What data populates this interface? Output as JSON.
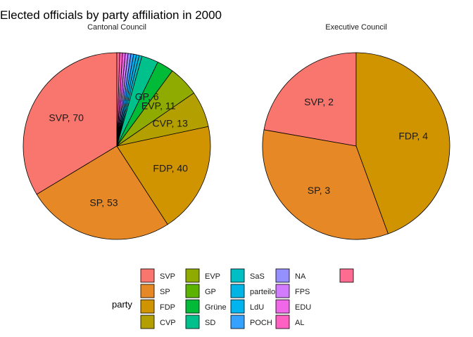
{
  "chart_data": {
    "type": "pie",
    "title": "Elected officials by party affiliation in 2000",
    "legend": {
      "title": "party",
      "position": "bottom"
    },
    "parties": [
      {
        "name": "SVP",
        "color": "#F8766D"
      },
      {
        "name": "SP",
        "color": "#E58825"
      },
      {
        "name": "FDP",
        "color": "#D09400"
      },
      {
        "name": "CVP",
        "color": "#B3A000"
      },
      {
        "name": "EVP",
        "color": "#8FAA00"
      },
      {
        "name": "GP",
        "color": "#5BB300"
      },
      {
        "name": "Grüne",
        "color": "#00BA38"
      },
      {
        "name": "SD",
        "color": "#00C08B"
      },
      {
        "name": "SaS",
        "color": "#00BFC4"
      },
      {
        "name": "parteilos",
        "color": "#00B4E4"
      },
      {
        "name": "LdU",
        "color": "#00B4F0"
      },
      {
        "name": "POCH",
        "color": "#35A2FF"
      },
      {
        "name": "NA",
        "color": "#9590FF"
      },
      {
        "name": "FPS",
        "color": "#D27BFF"
      },
      {
        "name": "EDU",
        "color": "#F067E8"
      },
      {
        "name": "AL",
        "color": "#FF61C3"
      },
      {
        "name": "",
        "color": "#FF6C91"
      }
    ],
    "panels": [
      {
        "title": "Cantonal Council",
        "slices": [
          {
            "party": "SVP",
            "value": 70,
            "label": "SVP, 70"
          },
          {
            "party": "SP",
            "value": 53,
            "label": "SP, 53"
          },
          {
            "party": "FDP",
            "value": 40,
            "label": "FDP, 40"
          },
          {
            "party": "CVP",
            "value": 13,
            "label": "CVP, 13"
          },
          {
            "party": "EVP",
            "value": 11,
            "label": "EVP, 11"
          },
          {
            "party": "Grüne",
            "value": 6,
            "label": "GP, 6"
          },
          {
            "party": "SD",
            "value": 6,
            "label": ""
          },
          {
            "party": "SaS",
            "value": 1,
            "label": ""
          },
          {
            "party": "parteilos",
            "value": 1,
            "label": ""
          },
          {
            "party": "LdU",
            "value": 1,
            "label": ""
          },
          {
            "party": "POCH",
            "value": 1,
            "label": ""
          },
          {
            "party": "NA",
            "value": 1,
            "label": ""
          },
          {
            "party": "FPS",
            "value": 1,
            "label": ""
          },
          {
            "party": "EDU",
            "value": 1,
            "label": ""
          },
          {
            "party": "AL",
            "value": 1,
            "label": ""
          },
          {
            "party": "",
            "value": 1,
            "label": ""
          }
        ]
      },
      {
        "title": "Executive Council",
        "slices": [
          {
            "party": "SVP",
            "value": 2,
            "label": "SVP, 2"
          },
          {
            "party": "SP",
            "value": 3,
            "label": "SP, 3"
          },
          {
            "party": "FDP",
            "value": 4,
            "label": "FDP, 4"
          }
        ]
      }
    ]
  }
}
